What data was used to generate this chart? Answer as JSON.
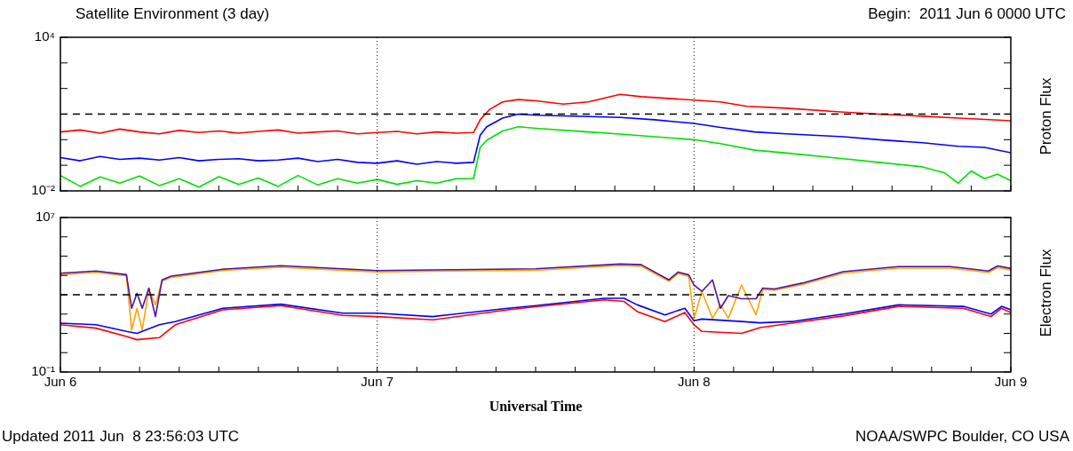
{
  "chart_data": [
    {
      "type": "line",
      "title": "Satellite Environment (3 day)",
      "subtitle": "Begin:  2011 Jun 6 0000 UTC",
      "ylabel": "Proton Flux",
      "log": "y",
      "marker": "none",
      "tick_labels": "y",
      "xlim": [
        "2011-06-06T00:00",
        "2011-06-09T00:00"
      ],
      "ylim": [
        0.01,
        10000
      ],
      "xticks": [
        {
          "value": "2011-06-06T00:00",
          "label": null
        },
        {
          "value": "2011-06-06T03:00",
          "label": null
        },
        {
          "value": "2011-06-06T06:00",
          "label": null
        },
        {
          "value": "2011-06-06T09:00",
          "label": null
        },
        {
          "value": "2011-06-06T12:00",
          "label": null
        },
        {
          "value": "2011-06-06T15:00",
          "label": null
        },
        {
          "value": "2011-06-06T18:00",
          "label": null
        },
        {
          "value": "2011-06-06T21:00",
          "label": null
        },
        {
          "value": "2011-06-07T00:00",
          "label": null
        },
        {
          "value": "2011-06-07T03:00",
          "label": null
        },
        {
          "value": "2011-06-07T06:00",
          "label": null
        },
        {
          "value": "2011-06-07T09:00",
          "label": null
        },
        {
          "value": "2011-06-07T12:00",
          "label": null
        },
        {
          "value": "2011-06-07T15:00",
          "label": null
        },
        {
          "value": "2011-06-07T18:00",
          "label": null
        },
        {
          "value": "2011-06-07T21:00",
          "label": null
        },
        {
          "value": "2011-06-08T00:00",
          "label": null
        },
        {
          "value": "2011-06-08T03:00",
          "label": null
        },
        {
          "value": "2011-06-08T06:00",
          "label": null
        },
        {
          "value": "2011-06-08T09:00",
          "label": null
        },
        {
          "value": "2011-06-08T12:00",
          "label": null
        },
        {
          "value": "2011-06-08T15:00",
          "label": null
        },
        {
          "value": "2011-06-08T18:00",
          "label": null
        },
        {
          "value": "2011-06-08T21:00",
          "label": null
        },
        {
          "value": "2011-06-09T00:00",
          "label": null
        }
      ],
      "yticks": [
        {
          "value": 0.01,
          "label": "10⁻²"
        },
        {
          "value": 0.1,
          "label": null
        },
        {
          "value": 1,
          "label": null
        },
        {
          "value": 10,
          "label": null
        },
        {
          "value": 100,
          "label": null
        },
        {
          "value": 1000,
          "label": null
        },
        {
          "value": 10000,
          "label": "10⁴"
        }
      ],
      "ref_lines": [
        {
          "axis": "x",
          "value": "2011-06-07T00:00",
          "color": "#000000",
          "line_style": "dotted"
        },
        {
          "axis": "x",
          "value": "2011-06-08T00:00",
          "color": "#000000",
          "line_style": "dotted"
        },
        {
          "axis": "y",
          "value": 10,
          "color": "#000000",
          "line_style": "dashed"
        }
      ],
      "series": [
        {
          "color": "#ff0000",
          "x": [
            "2011-06-06T00:00",
            "2011-06-06T01:30",
            "2011-06-06T03:00",
            "2011-06-06T04:30",
            "2011-06-06T06:00",
            "2011-06-06T07:30",
            "2011-06-06T09:00",
            "2011-06-06T10:30",
            "2011-06-06T12:00",
            "2011-06-06T13:30",
            "2011-06-06T15:00",
            "2011-06-06T16:30",
            "2011-06-06T18:00",
            "2011-06-06T19:30",
            "2011-06-06T21:00",
            "2011-06-06T22:30",
            "2011-06-07T00:00",
            "2011-06-07T01:30",
            "2011-06-07T03:00",
            "2011-06-07T04:30",
            "2011-06-07T06:00",
            "2011-06-07T07:18",
            "2011-06-07T07:48",
            "2011-06-07T08:30",
            "2011-06-07T09:30",
            "2011-06-07T10:42",
            "2011-06-07T12:00",
            "2011-06-07T14:06",
            "2011-06-07T16:00",
            "2011-06-07T18:24",
            "2011-06-07T20:00",
            "2011-06-08T00:00",
            "2011-06-08T02:00",
            "2011-06-08T04:00",
            "2011-06-08T07:00",
            "2011-06-08T11:18",
            "2011-06-08T14:00",
            "2011-06-08T17:18",
            "2011-06-08T20:00",
            "2011-06-09T00:00"
          ],
          "values": [
            2,
            2.4,
            1.8,
            2.6,
            2,
            1.7,
            2.3,
            1.9,
            2.2,
            1.8,
            2.1,
            2.4,
            1.8,
            2,
            2.2,
            1.7,
            1.9,
            2.1,
            1.7,
            2,
            1.8,
            1.9,
            6,
            15,
            30,
            37,
            33,
            24.5,
            30,
            59,
            48,
            35,
            30,
            20,
            17,
            12,
            10,
            8.3,
            7,
            5.5
          ]
        },
        {
          "color": "#0000ff",
          "x": [
            "2011-06-06T00:00",
            "2011-06-06T01:30",
            "2011-06-06T03:00",
            "2011-06-06T04:30",
            "2011-06-06T06:00",
            "2011-06-06T07:30",
            "2011-06-06T09:00",
            "2011-06-06T10:30",
            "2011-06-06T12:00",
            "2011-06-06T13:30",
            "2011-06-06T15:00",
            "2011-06-06T16:30",
            "2011-06-06T18:00",
            "2011-06-06T19:30",
            "2011-06-06T21:00",
            "2011-06-06T22:30",
            "2011-06-07T00:00",
            "2011-06-07T01:30",
            "2011-06-07T03:00",
            "2011-06-07T04:30",
            "2011-06-07T06:00",
            "2011-06-07T07:18",
            "2011-06-07T07:48",
            "2011-06-07T08:18",
            "2011-06-07T09:30",
            "2011-06-07T10:42",
            "2011-06-07T12:00",
            "2011-06-07T16:00",
            "2011-06-07T18:24",
            "2011-06-07T21:00",
            "2011-06-08T00:00",
            "2011-06-08T02:00",
            "2011-06-08T04:36",
            "2011-06-08T07:00",
            "2011-06-08T11:18",
            "2011-06-08T14:00",
            "2011-06-08T17:18",
            "2011-06-08T20:00",
            "2011-06-08T22:00",
            "2011-06-09T00:00"
          ],
          "values": [
            0.2,
            0.15,
            0.22,
            0.17,
            0.19,
            0.16,
            0.2,
            0.15,
            0.17,
            0.18,
            0.15,
            0.16,
            0.19,
            0.14,
            0.17,
            0.13,
            0.12,
            0.15,
            0.11,
            0.14,
            0.12,
            0.13,
            1.5,
            3.2,
            7,
            10,
            9,
            8,
            7.4,
            6,
            4.3,
            3,
            2,
            1.7,
            1.3,
            1,
            0.76,
            0.55,
            0.5,
            0.31
          ]
        },
        {
          "color": "#00e000",
          "x": [
            "2011-06-06T00:00",
            "2011-06-06T01:30",
            "2011-06-06T03:00",
            "2011-06-06T04:30",
            "2011-06-06T06:00",
            "2011-06-06T07:30",
            "2011-06-06T09:00",
            "2011-06-06T10:30",
            "2011-06-06T12:00",
            "2011-06-06T13:30",
            "2011-06-06T15:00",
            "2011-06-06T16:30",
            "2011-06-06T18:00",
            "2011-06-06T19:30",
            "2011-06-06T21:00",
            "2011-06-06T22:30",
            "2011-06-07T00:00",
            "2011-06-07T01:30",
            "2011-06-07T03:00",
            "2011-06-07T04:30",
            "2011-06-07T06:00",
            "2011-06-07T07:18",
            "2011-06-07T07:48",
            "2011-06-07T08:18",
            "2011-06-07T09:30",
            "2011-06-07T10:42",
            "2011-06-07T12:00",
            "2011-06-07T16:00",
            "2011-06-07T18:24",
            "2011-06-07T21:00",
            "2011-06-08T00:00",
            "2011-06-08T02:00",
            "2011-06-08T04:36",
            "2011-06-08T07:00",
            "2011-06-08T11:18",
            "2011-06-08T14:00",
            "2011-06-08T17:18",
            "2011-06-08T19:00",
            "2011-06-08T20:00",
            "2011-06-08T21:00",
            "2011-06-08T22:00",
            "2011-06-08T23:00",
            "2011-06-09T00:00"
          ],
          "values": [
            0.04,
            0.015,
            0.035,
            0.02,
            0.038,
            0.016,
            0.03,
            0.014,
            0.036,
            0.018,
            0.032,
            0.015,
            0.04,
            0.017,
            0.03,
            0.02,
            0.028,
            0.018,
            0.025,
            0.02,
            0.03,
            0.03,
            0.5,
            0.95,
            2.2,
            3.2,
            2.8,
            2,
            1.65,
            1.3,
            1,
            0.7,
            0.39,
            0.3,
            0.18,
            0.13,
            0.087,
            0.05,
            0.02,
            0.06,
            0.03,
            0.045,
            0.025
          ]
        }
      ]
    },
    {
      "type": "line",
      "xlabel": "Universal Time",
      "ylabel": "Electron Flux",
      "log": "y",
      "marker": "none",
      "xlim": [
        "2011-06-06T00:00",
        "2011-06-09T00:00"
      ],
      "ylim": [
        0.1,
        10000000
      ],
      "annotations": [
        "Updated 2011 Jun  8 23:56:03 UTC",
        "NOAA/SWPC Boulder, CO USA"
      ],
      "xticks": [
        {
          "value": "2011-06-06T00:00",
          "label": "Jun 6"
        },
        {
          "value": "2011-06-06T03:00",
          "label": null
        },
        {
          "value": "2011-06-06T06:00",
          "label": null
        },
        {
          "value": "2011-06-06T09:00",
          "label": null
        },
        {
          "value": "2011-06-06T12:00",
          "label": null
        },
        {
          "value": "2011-06-06T15:00",
          "label": null
        },
        {
          "value": "2011-06-06T18:00",
          "label": null
        },
        {
          "value": "2011-06-06T21:00",
          "label": null
        },
        {
          "value": "2011-06-07T00:00",
          "label": "Jun 7"
        },
        {
          "value": "2011-06-07T03:00",
          "label": null
        },
        {
          "value": "2011-06-07T06:00",
          "label": null
        },
        {
          "value": "2011-06-07T09:00",
          "label": null
        },
        {
          "value": "2011-06-07T12:00",
          "label": null
        },
        {
          "value": "2011-06-07T15:00",
          "label": null
        },
        {
          "value": "2011-06-07T18:00",
          "label": null
        },
        {
          "value": "2011-06-07T21:00",
          "label": null
        },
        {
          "value": "2011-06-08T00:00",
          "label": "Jun 8"
        },
        {
          "value": "2011-06-08T03:00",
          "label": null
        },
        {
          "value": "2011-06-08T06:00",
          "label": null
        },
        {
          "value": "2011-06-08T09:00",
          "label": null
        },
        {
          "value": "2011-06-08T12:00",
          "label": null
        },
        {
          "value": "2011-06-08T15:00",
          "label": null
        },
        {
          "value": "2011-06-08T18:00",
          "label": null
        },
        {
          "value": "2011-06-08T21:00",
          "label": null
        },
        {
          "value": "2011-06-09T00:00",
          "label": "Jun 9"
        }
      ],
      "yticks": [
        {
          "value": 0.1,
          "label": "10⁻¹"
        },
        {
          "value": 1,
          "label": null
        },
        {
          "value": 10,
          "label": null
        },
        {
          "value": 100,
          "label": null
        },
        {
          "value": 1000,
          "label": null
        },
        {
          "value": 10000,
          "label": null
        },
        {
          "value": 100000,
          "label": null
        },
        {
          "value": 1000000,
          "label": null
        },
        {
          "value": 10000000,
          "label": "10⁷"
        }
      ],
      "ref_lines": [
        {
          "axis": "x",
          "value": "2011-06-07T00:00",
          "color": "#000000",
          "line_style": "dotted"
        },
        {
          "axis": "x",
          "value": "2011-06-08T00:00",
          "color": "#000000",
          "line_style": "dotted"
        },
        {
          "axis": "y",
          "value": 1000,
          "color": "#000000",
          "line_style": "dashed"
        }
      ],
      "series": [
        {
          "color": "#ff0000",
          "x": [
            "2011-06-06T00:00",
            "2011-06-06T02:42",
            "2011-06-06T05:00",
            "2011-06-06T05:48",
            "2011-06-06T07:30",
            "2011-06-06T08:42",
            "2011-06-06T12:18",
            "2011-06-06T16:42",
            "2011-06-06T21:24",
            "2011-06-07T00:00",
            "2011-06-07T04:12",
            "2011-06-07T09:54",
            "2011-06-07T12:00",
            "2011-06-07T17:12",
            "2011-06-07T18:42",
            "2011-06-07T19:42",
            "2011-06-07T21:48",
            "2011-06-07T23:18",
            "2011-06-08T00:00",
            "2011-06-08T00:36",
            "2011-06-08T03:36",
            "2011-06-08T05:00",
            "2011-06-08T07:24",
            "2011-06-08T11:18",
            "2011-06-08T15:30",
            "2011-06-08T20:24",
            "2011-06-08T22:30",
            "2011-06-08T23:18",
            "2011-06-09T00:00"
          ],
          "values": [
            28,
            18.6,
            6.9,
            4.7,
            6,
            28,
            166,
            275,
            85,
            74,
            50,
            166,
            240,
            540,
            450,
            135,
            41,
            120,
            28,
            12.6,
            10,
            20,
            34,
            80,
            250,
            200,
            74,
            200,
            120
          ]
        },
        {
          "color": "#0000ff",
          "x": [
            "2011-06-06T00:00",
            "2011-06-06T02:42",
            "2011-06-06T05:00",
            "2011-06-06T05:48",
            "2011-06-06T07:30",
            "2011-06-06T08:42",
            "2011-06-06T12:18",
            "2011-06-06T16:42",
            "2011-06-06T21:24",
            "2011-06-07T00:00",
            "2011-06-07T04:12",
            "2011-06-07T09:54",
            "2011-06-07T12:00",
            "2011-06-07T17:12",
            "2011-06-07T18:42",
            "2011-06-07T19:42",
            "2011-06-07T21:48",
            "2011-06-07T23:18",
            "2011-06-08T00:00",
            "2011-06-08T00:36",
            "2011-06-08T03:36",
            "2011-06-08T05:00",
            "2011-06-08T07:24",
            "2011-06-08T11:18",
            "2011-06-08T15:30",
            "2011-06-08T20:24",
            "2011-06-08T22:30",
            "2011-06-08T23:18",
            "2011-06-09T00:00"
          ],
          "values": [
            34,
            28,
            12.6,
            10,
            28,
            41,
            200,
            325,
            112,
            112,
            74,
            200,
            275,
            660,
            660,
            300,
            91,
            200,
            45,
            55,
            41,
            35,
            41,
            100,
            300,
            250,
            100,
            250,
            166
          ]
        },
        {
          "color": "#5010a0",
          "x": [
            "2011-06-06T00:00",
            "2011-06-06T02:42",
            "2011-06-06T05:00",
            "2011-06-06T05:24",
            "2011-06-06T05:48",
            "2011-06-06T06:12",
            "2011-06-06T06:42",
            "2011-06-06T07:12",
            "2011-06-06T07:42",
            "2011-06-06T08:24",
            "2011-06-06T12:18",
            "2011-06-06T16:42",
            "2011-06-07T00:00",
            "2011-06-07T06:00",
            "2011-06-07T12:00",
            "2011-06-07T18:24",
            "2011-06-07T20:00",
            "2011-06-07T22:06",
            "2011-06-07T22:48",
            "2011-06-07T23:36",
            "2011-06-08T00:00",
            "2011-06-08T00:36",
            "2011-06-08T01:24",
            "2011-06-08T02:00",
            "2011-06-08T02:36",
            "2011-06-08T03:36",
            "2011-06-08T04:42",
            "2011-06-08T05:12",
            "2011-06-08T06:06",
            "2011-06-08T08:12",
            "2011-06-08T11:18",
            "2011-06-08T15:30",
            "2011-06-08T19:24",
            "2011-06-08T22:18",
            "2011-06-08T23:00",
            "2011-06-09T00:00"
          ],
          "values": [
            13000,
            17000,
            11000,
            200,
            1200,
            200,
            2200,
            74,
            5900,
            9300,
            21000,
            32000,
            17800,
            20000,
            22000,
            39000,
            36000,
            5900,
            15000,
            10700,
            3200,
            1500,
            5900,
            200,
            900,
            620,
            620,
            2200,
            2000,
            4000,
            15800,
            28800,
            28800,
            17000,
            31000,
            23000
          ]
        },
        {
          "color": "#ffa500",
          "x": [
            "2011-06-06T00:00",
            "2011-06-06T02:42",
            "2011-06-06T05:00",
            "2011-06-06T05:24",
            "2011-06-06T05:48",
            "2011-06-06T06:12",
            "2011-06-06T06:42",
            "2011-06-06T07:12",
            "2011-06-06T07:42",
            "2011-06-06T08:24",
            "2011-06-06T12:18",
            "2011-06-06T16:42",
            "2011-06-07T00:00",
            "2011-06-07T06:00",
            "2011-06-07T12:00",
            "2011-06-07T18:24",
            "2011-06-07T20:00",
            "2011-06-07T22:06",
            "2011-06-07T22:48",
            "2011-06-07T23:36",
            "2011-06-08T00:00",
            "2011-06-08T00:36",
            "2011-06-08T01:24",
            "2011-06-08T02:00",
            "2011-06-08T02:36",
            "2011-06-08T03:36",
            "2011-06-08T04:42",
            "2011-06-08T05:12",
            "2011-06-08T06:06",
            "2011-06-08T08:12",
            "2011-06-08T11:18",
            "2011-06-08T15:30",
            "2011-06-08T19:24",
            "2011-06-08T22:18",
            "2011-06-08T23:00",
            "2011-06-09T00:00"
          ],
          "values": [
            11000,
            14500,
            9500,
            15,
            200,
            15,
            1900,
            300,
            5000,
            8000,
            18000,
            27000,
            15000,
            17000,
            18500,
            33000,
            30000,
            5000,
            12500,
            9000,
            61,
            1450,
            61,
            300,
            61,
            3200,
            91,
            1900,
            1700,
            3400,
            13000,
            24000,
            24000,
            14000,
            26000,
            19000
          ]
        }
      ]
    }
  ]
}
